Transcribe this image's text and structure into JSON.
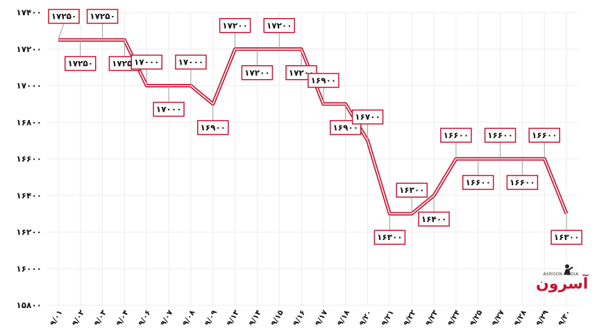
{
  "chart_data": {
    "type": "line",
    "title": "",
    "xlabel": "",
    "ylabel": "",
    "ylim": [
      15800,
      17400
    ],
    "yticks": [
      15800,
      16000,
      16200,
      16400,
      16600,
      16800,
      17000,
      17200,
      17400
    ],
    "ytick_labels": [
      "۱۵۸۰۰",
      "۱۶۰۰۰",
      "۱۶۲۰۰",
      "۱۶۴۰۰",
      "۱۶۶۰۰",
      "۱۶۸۰۰",
      "۱۷۰۰۰",
      "۱۷۲۰۰",
      "۱۷۴۰۰"
    ],
    "grid": true,
    "line_color": "#c8102e",
    "categories": [
      "۹/۰۱",
      "۹/۰۲",
      "۹/۰۳",
      "۹/۰۴",
      "۹/۰۶",
      "۹/۰۷",
      "۹/۰۸",
      "۹/۰۹",
      "۹/۱۳",
      "۹/۱۴",
      "۹/۱۵",
      "۹/۱۶",
      "۹/۱۷",
      "۹/۱۸",
      "۹/۲۰",
      "۹/۲۱",
      "۹/۲۲",
      "۹/۲۳",
      "۹/۲۴",
      "۹/۲۵",
      "۹/۲۷",
      "۹/۲۸",
      "۹/۲۹",
      "۹/۳۰"
    ],
    "series": [
      {
        "values": [
          17250,
          17250,
          17250,
          17250,
          17000,
          17000,
          17000,
          16900,
          17200,
          17200,
          17200,
          17200,
          16900,
          16900,
          16700,
          16300,
          16300,
          16400,
          16600,
          16600,
          16600,
          16600,
          16600,
          16300
        ],
        "labels": [
          "۱۷۲۵۰",
          "۱۷۲۵۰",
          "۱۷۲۵۰",
          "۱۷۲۵۰",
          "۱۷۰۰۰",
          "۱۷۰۰۰",
          "۱۷۰۰۰",
          "۱۶۹۰۰",
          "۱۷۲۰۰",
          "۱۷۲۰۰",
          "۱۷۲۰۰",
          "۱۷۲۰۰",
          "۱۶۹۰۰",
          "۱۶۹۰۰",
          "۱۶۷۰۰",
          "۱۶۳۰۰",
          "۱۶۳۰۰",
          "۱۶۴۰۰",
          "۱۶۶۰۰",
          "۱۶۶۰۰",
          "۱۶۶۰۰",
          "۱۶۶۰۰",
          "۱۶۶۰۰",
          "۱۶۳۰۰"
        ]
      }
    ]
  },
  "logo": {
    "word": "آسرون",
    "subtitle": "ASROON MEDIA"
  }
}
